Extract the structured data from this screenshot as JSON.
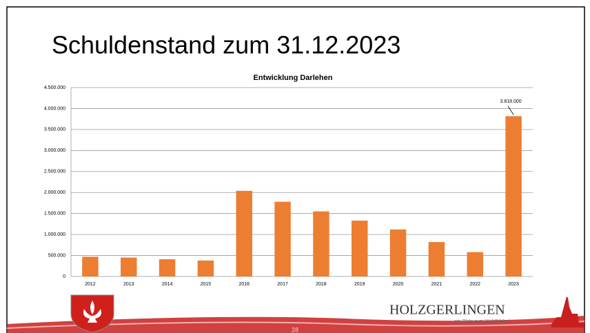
{
  "slide": {
    "title": "Schuldenstand zum 31.12.2023",
    "page_number": "28",
    "logo": {
      "name": "HOLZGERLINGEN",
      "slogan": "ein Platz zum Wohlfühlen!"
    }
  },
  "chart_data": {
    "type": "bar",
    "title": "Entwicklung Darlehen",
    "categories": [
      "2012",
      "2013",
      "2014",
      "2015",
      "2016",
      "2017",
      "2018",
      "2019",
      "2020",
      "2021",
      "2022",
      "2023"
    ],
    "values": [
      470000,
      450000,
      410000,
      380000,
      2040000,
      1780000,
      1550000,
      1330000,
      1120000,
      820000,
      580000,
      3818000
    ],
    "value_labels": [
      null,
      null,
      null,
      null,
      null,
      null,
      null,
      null,
      null,
      null,
      null,
      "3.818.000"
    ],
    "color": "#ed7d31",
    "ylim": [
      0,
      4500000
    ],
    "yticks": [
      0,
      {
        "value": 500000,
        "label": "500.000"
      },
      {
        "value": 1000000,
        "label": "1.000.000"
      },
      {
        "value": 1500000,
        "label": "1.500.000"
      },
      {
        "value": 2000000,
        "label": "2.000.000"
      },
      {
        "value": 2500000,
        "label": "2.500.000"
      },
      {
        "value": 3000000,
        "label": "3.000.000"
      },
      {
        "value": 3500000,
        "label": "3.500.000"
      },
      {
        "value": 4000000,
        "label": "4.000.000"
      },
      {
        "value": 4500000,
        "label": "4.500.000"
      }
    ],
    "grid": true
  }
}
